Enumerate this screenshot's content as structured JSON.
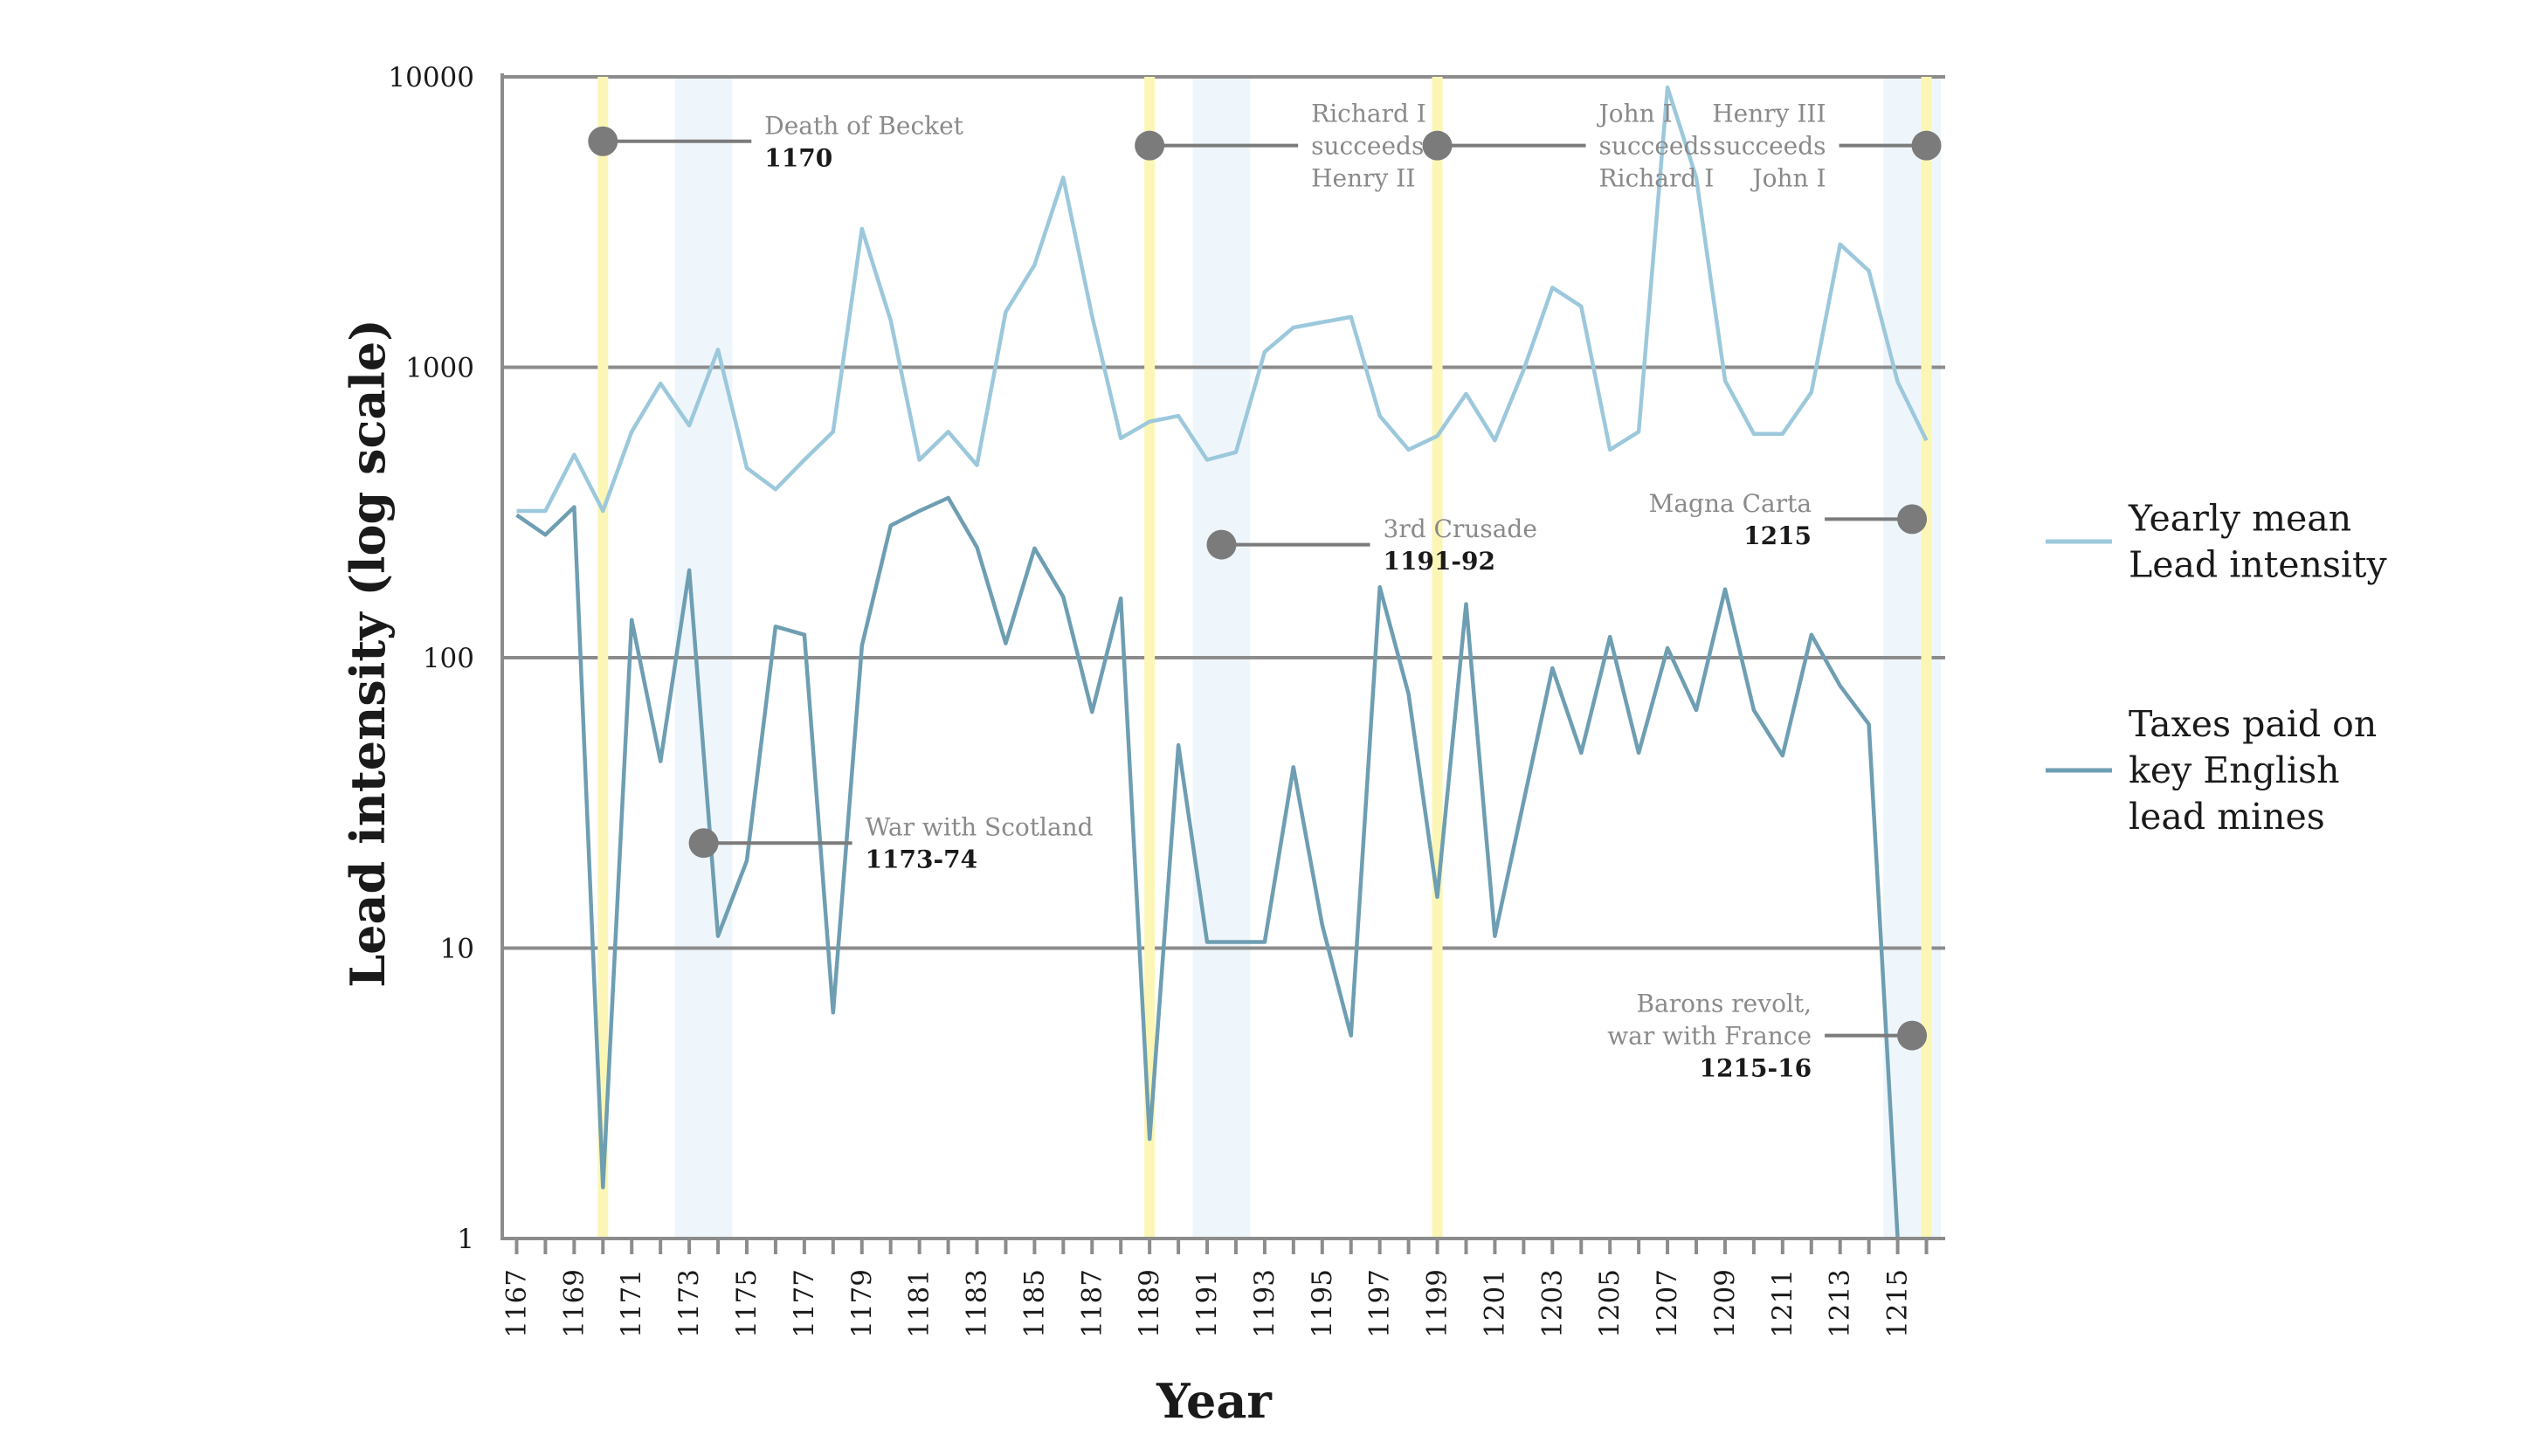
{
  "chart_data": {
    "type": "line",
    "title": "",
    "xlabel": "Year",
    "ylabel": "Lead intensity (log scale)",
    "yscale": "log",
    "ylim": [
      1,
      10000
    ],
    "xlim": [
      1166.5,
      1216.5
    ],
    "yticks": [
      1,
      10,
      100,
      1000,
      10000
    ],
    "ytick_labels": [
      "1",
      "10",
      "100",
      "1000",
      "10000"
    ],
    "xticks": [
      1167,
      1169,
      1171,
      1173,
      1175,
      1177,
      1179,
      1181,
      1183,
      1185,
      1187,
      1189,
      1191,
      1193,
      1195,
      1197,
      1199,
      1201,
      1203,
      1205,
      1207,
      1209,
      1211,
      1213,
      1215
    ],
    "xtick_labels": [
      "1167",
      "1169",
      "1171",
      "1173",
      "1175",
      "1177",
      "1179",
      "1181",
      "1183",
      "1185",
      "1187",
      "1189",
      "1191",
      "1193",
      "1195",
      "1197",
      "1199",
      "1201",
      "1203",
      "1205",
      "1207",
      "1209",
      "1211",
      "1213",
      "1215"
    ],
    "grid": "horizontal",
    "legend_position": "right",
    "series": [
      {
        "name": "Yearly mean Lead intensity",
        "legend_lines": [
          "Yearly mean",
          "Lead intensity"
        ],
        "color": "#9cc8dc",
        "x": [
          1167,
          1168,
          1169,
          1170,
          1171,
          1172,
          1173,
          1174,
          1175,
          1176,
          1177,
          1178,
          1179,
          1180,
          1181,
          1182,
          1183,
          1184,
          1185,
          1186,
          1187,
          1188,
          1189,
          1190,
          1191,
          1192,
          1193,
          1194,
          1195,
          1196,
          1197,
          1198,
          1199,
          1200,
          1201,
          1202,
          1203,
          1204,
          1205,
          1206,
          1207,
          1208,
          1209,
          1210,
          1211,
          1212,
          1213,
          1214,
          1215,
          1216
        ],
        "values": [
          320,
          320,
          500,
          320,
          600,
          880,
          630,
          1150,
          450,
          380,
          480,
          600,
          3000,
          1450,
          480,
          600,
          460,
          1550,
          2250,
          4500,
          1500,
          570,
          650,
          680,
          480,
          510,
          1130,
          1370,
          1430,
          1490,
          680,
          520,
          580,
          810,
          560,
          980,
          1880,
          1620,
          520,
          600,
          9200,
          4500,
          900,
          590,
          590,
          820,
          2650,
          2150,
          890,
          560
        ]
      },
      {
        "name": "Taxes paid on key English lead mines",
        "legend_lines": [
          "Taxes paid on",
          "key English",
          "lead mines"
        ],
        "color": "#6e9eb2",
        "x": [
          1167,
          1168,
          1169,
          1170,
          1171,
          1172,
          1173,
          1174,
          1175,
          1176,
          1177,
          1178,
          1179,
          1180,
          1181,
          1182,
          1183,
          1184,
          1185,
          1186,
          1187,
          1188,
          1189,
          1190,
          1191,
          1192,
          1193,
          1194,
          1195,
          1196,
          1197,
          1198,
          1199,
          1200,
          1201,
          1202,
          1203,
          1204,
          1205,
          1206,
          1207,
          1208,
          1209,
          1210,
          1211,
          1212,
          1213,
          1214,
          1215
        ],
        "values": [
          310,
          265,
          330,
          1.5,
          135,
          44,
          200,
          11,
          20,
          128,
          120,
          6,
          110,
          285,
          320,
          355,
          240,
          112,
          238,
          162,
          65,
          160,
          2.2,
          50,
          10.5,
          10.5,
          10.5,
          42,
          12,
          5,
          175,
          75,
          15,
          153,
          11,
          32,
          92,
          47,
          118,
          47,
          108,
          66,
          172,
          66,
          46,
          120,
          80,
          59,
          1
        ]
      }
    ],
    "annotations": [
      {
        "kind": "line",
        "year": 1170,
        "text_lines": [
          "Death of Becket"
        ],
        "date_label": "1170",
        "marker_y": 6000,
        "align": "right"
      },
      {
        "kind": "band",
        "from": 1173,
        "to": 1174,
        "text_lines": [
          "War with Scotland"
        ],
        "date_label": "1173-74",
        "marker_y": 23,
        "align": "right"
      },
      {
        "kind": "line",
        "year": 1189,
        "text_lines": [
          "Richard I",
          "succeeds",
          "Henry II"
        ],
        "date_label": "",
        "marker_y": 5800,
        "align": "right"
      },
      {
        "kind": "band",
        "from": 1191,
        "to": 1192,
        "text_lines": [
          "3rd Crusade"
        ],
        "date_label": "1191-92",
        "marker_y": 245,
        "align": "right"
      },
      {
        "kind": "line",
        "year": 1199,
        "text_lines": [
          "John I",
          "succeeds",
          "Richard I"
        ],
        "date_label": "",
        "marker_y": 5800,
        "align": "right"
      },
      {
        "kind": "line",
        "year": 1216,
        "text_lines": [
          "Henry III",
          "succeeds",
          "John I"
        ],
        "date_label": "",
        "marker_y": 5800,
        "align": "left"
      },
      {
        "kind": "band",
        "from": 1215,
        "to": 1216,
        "text_lines": [
          "Magna Carta"
        ],
        "date_label": "1215",
        "marker_y": 300,
        "align": "left"
      },
      {
        "kind": "band",
        "from": 1215,
        "to": 1216,
        "text_lines": [
          "Barons revolt,",
          "war with France"
        ],
        "date_label": "1215-16",
        "marker_y": 5,
        "align": "left"
      }
    ],
    "colors": {
      "event_line": "#fbf6b6",
      "event_band": "#eef6fb",
      "marker": "#7b7b7b",
      "grid": "#8c8c8c"
    }
  }
}
